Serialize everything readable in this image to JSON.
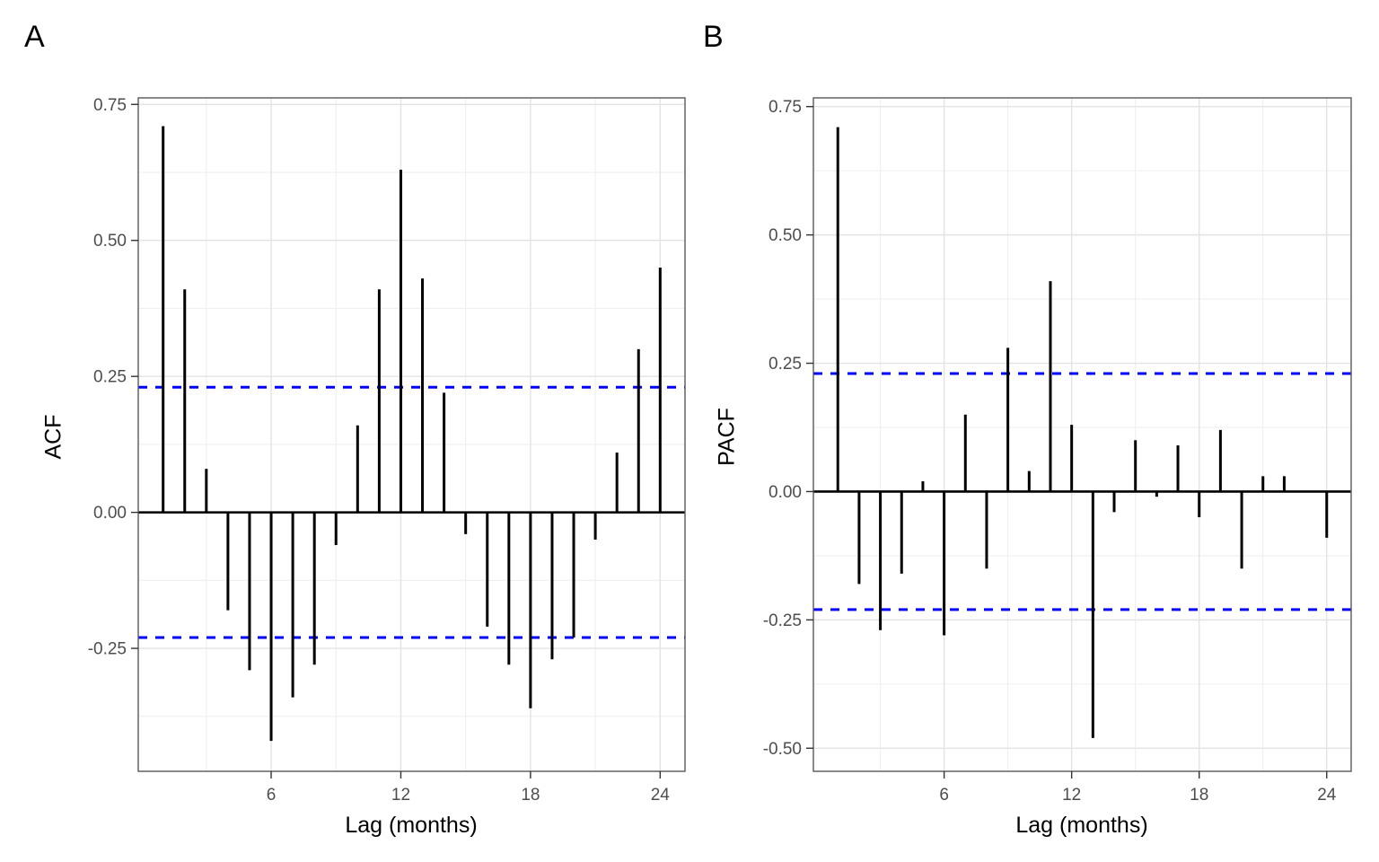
{
  "figure": {
    "background": "#ffffff",
    "panel_border_color": "#595959",
    "grid_major_color": "#e3e3e3",
    "grid_minor_color": "#f0f0f0",
    "tick_color": "#333333",
    "tick_label_color": "#4d4d4d",
    "bar_color": "#000000",
    "zero_line_color": "#000000",
    "ci_line_color": "#0000ff"
  },
  "chart_data": [
    {
      "type": "bar",
      "panel_tag": "A",
      "xlabel": "Lag (months)",
      "ylabel": "ACF",
      "x": [
        1,
        2,
        3,
        4,
        5,
        6,
        7,
        8,
        9,
        10,
        11,
        12,
        13,
        14,
        15,
        16,
        17,
        18,
        19,
        20,
        21,
        22,
        23,
        24
      ],
      "values": [
        0.71,
        0.41,
        0.08,
        -0.18,
        -0.29,
        -0.42,
        -0.34,
        -0.28,
        -0.06,
        0.16,
        0.41,
        0.63,
        0.43,
        0.22,
        -0.04,
        -0.21,
        -0.28,
        -0.36,
        -0.27,
        -0.23,
        -0.05,
        0.11,
        0.3,
        0.45
      ],
      "ci_upper": 0.23,
      "ci_lower": -0.23,
      "x_ticks": [
        "6",
        "12",
        "18",
        "24"
      ],
      "x_minor_ticks": [
        3,
        9,
        15,
        21
      ],
      "y_ticks": [
        "0.75",
        "0.50",
        "0.25",
        "0.00",
        "-0.25"
      ],
      "xlim": [
        -0.15,
        25.15
      ],
      "ylim": [
        -0.476,
        0.762
      ],
      "grid": "major+minor",
      "legend": "none"
    },
    {
      "type": "bar",
      "panel_tag": "B",
      "xlabel": "Lag (months)",
      "ylabel": "PACF",
      "x": [
        1,
        2,
        3,
        4,
        5,
        6,
        7,
        8,
        9,
        10,
        11,
        12,
        13,
        14,
        15,
        16,
        17,
        18,
        19,
        20,
        21,
        22,
        23,
        24
      ],
      "values": [
        0.71,
        -0.18,
        -0.27,
        -0.16,
        0.02,
        -0.28,
        0.15,
        -0.15,
        0.28,
        0.04,
        0.41,
        0.13,
        -0.48,
        -0.04,
        0.1,
        -0.01,
        0.09,
        -0.05,
        0.12,
        -0.15,
        0.03,
        0.03,
        0.0,
        -0.09
      ],
      "ci_upper": 0.23,
      "ci_lower": -0.23,
      "x_ticks": [
        "6",
        "12",
        "18",
        "24"
      ],
      "x_minor_ticks": [
        3,
        9,
        15,
        21
      ],
      "y_ticks": [
        "0.75",
        "0.50",
        "0.25",
        "0.00",
        "-0.25",
        "-0.50"
      ],
      "xlim": [
        -0.15,
        25.15
      ],
      "ylim": [
        -0.545,
        0.767
      ],
      "grid": "major+minor",
      "legend": "none"
    }
  ]
}
